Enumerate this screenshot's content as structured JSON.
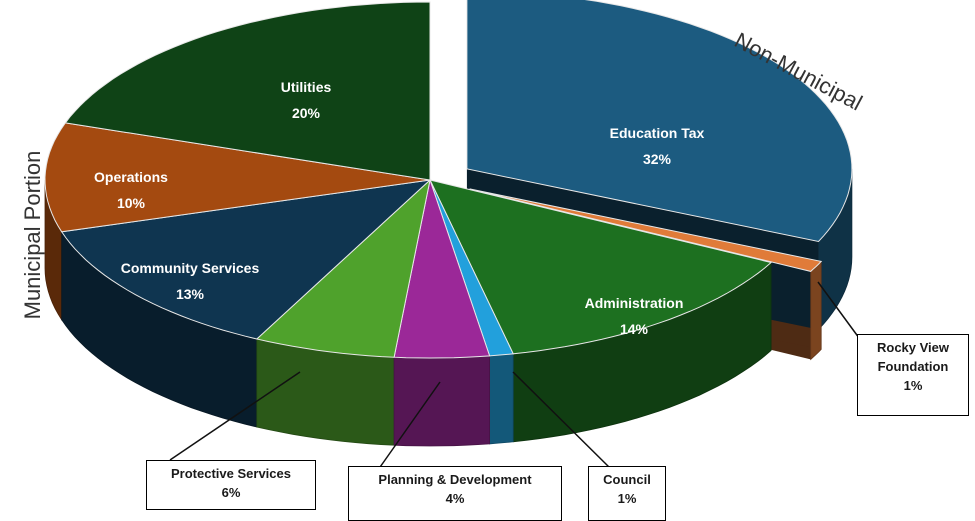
{
  "chart_data": {
    "type": "pie",
    "labels": {
      "municipal": "Municipal Portion",
      "non_municipal": "Non-Municipal"
    },
    "slices": [
      {
        "id": "education-tax",
        "name": "Education Tax",
        "value": 32,
        "label": "32%",
        "color": "#1c5b80",
        "group": "non_municipal"
      },
      {
        "id": "rocky-view-foundation",
        "name": "Rocky View Foundation",
        "value": 1,
        "label": "1%",
        "color": "#e07b39",
        "group": "non_municipal"
      },
      {
        "id": "administration",
        "name": "Administration",
        "value": 14,
        "label": "14%",
        "color": "#1d7020",
        "group": "municipal"
      },
      {
        "id": "council",
        "name": "Council",
        "value": 1,
        "label": "1%",
        "color": "#22a0dc",
        "group": "municipal"
      },
      {
        "id": "planning-development",
        "name": "Planning & Development",
        "value": 4,
        "label": "4%",
        "color": "#9b2898",
        "group": "municipal"
      },
      {
        "id": "protective-services",
        "name": "Protective Services",
        "value": 6,
        "label": "6%",
        "color": "#4fa22c",
        "group": "municipal"
      },
      {
        "id": "community-services",
        "name": "Community Services",
        "value": 13,
        "label": "13%",
        "color": "#0f3550",
        "group": "municipal"
      },
      {
        "id": "operations",
        "name": "Operations",
        "value": 10,
        "label": "10%",
        "color": "#a44a10",
        "group": "municipal"
      },
      {
        "id": "utilities",
        "name": "Utilities",
        "value": 20,
        "label": "20%",
        "color": "#0f4316",
        "group": "municipal"
      }
    ],
    "callouts": {
      "rocky_view_line1": "Rocky View",
      "rocky_view_line2": "Foundation",
      "rocky_view_pct": "1%",
      "protective_name": "Protective Services",
      "protective_pct": "6%",
      "planning_name": "Planning & Development",
      "planning_pct": "4%",
      "council_name": "Council",
      "council_pct": "1%"
    }
  }
}
